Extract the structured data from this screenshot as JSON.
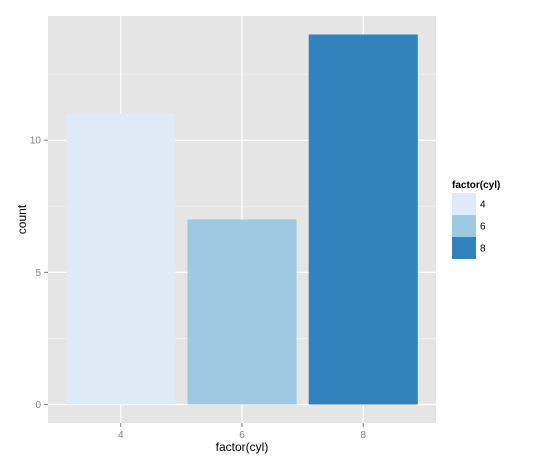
{
  "chart_data": {
    "type": "bar",
    "categories": [
      "4",
      "6",
      "8"
    ],
    "values": [
      11,
      7,
      14
    ],
    "colors": [
      "#DEEBF7",
      "#9ECAE1",
      "#3182BD"
    ],
    "xlabel": "factor(cyl)",
    "ylabel": "count",
    "ylim": [
      0,
      14.7
    ],
    "yticks": [
      0,
      5,
      10
    ],
    "panel_background": "#E5E5E5",
    "grid": true,
    "grid_color": "#FFFFFF",
    "legend": {
      "title": "factor(cyl)",
      "placement": "right",
      "entries": [
        "4",
        "6",
        "8"
      ]
    }
  }
}
